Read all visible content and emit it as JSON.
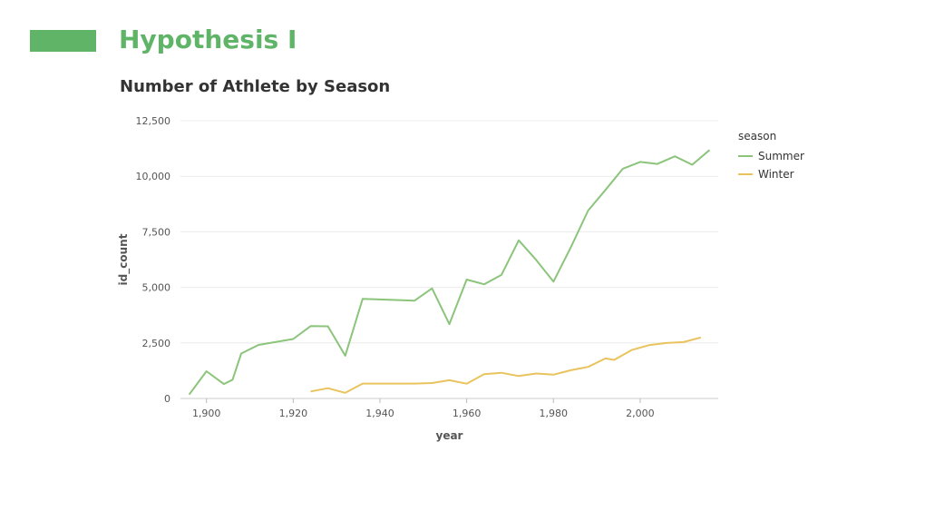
{
  "slide": {
    "title": "Hypothesis I",
    "accent_color": "#5fb468"
  },
  "chart_data": {
    "type": "line",
    "title": "Number of Athlete by Season",
    "xlabel": "year",
    "ylabel": "id_count",
    "xlim": [
      1894,
      2018
    ],
    "ylim": [
      0,
      12500
    ],
    "x_ticks": [
      1900,
      1920,
      1940,
      1960,
      1980,
      2000
    ],
    "x_tick_labels": [
      "1,900",
      "1,920",
      "1,940",
      "1,960",
      "1,980",
      "2,000"
    ],
    "y_ticks": [
      0,
      2500,
      5000,
      7500,
      10000,
      12500
    ],
    "y_tick_labels": [
      "0",
      "2,500",
      "5,000",
      "7,500",
      "10,000",
      "12,500"
    ],
    "grid": true,
    "legend": {
      "title": "season",
      "placement": "right"
    },
    "series": [
      {
        "name": "Summer",
        "color": "#8cc47c",
        "x": [
          1896,
          1900,
          1904,
          1906,
          1908,
          1912,
          1920,
          1924,
          1928,
          1932,
          1936,
          1948,
          1952,
          1956,
          1960,
          1964,
          1968,
          1972,
          1976,
          1980,
          1984,
          1988,
          1992,
          1996,
          2000,
          2004,
          2008,
          2012,
          2016
        ],
        "y": [
          176,
          1224,
          650,
          841,
          2024,
          2409,
          2676,
          3256,
          3247,
          1922,
          4484,
          4402,
          4955,
          3347,
          5352,
          5137,
          5558,
          7114,
          6241,
          5259,
          6797,
          8454,
          9386,
          10339,
          10647,
          10557,
          10899,
          10517,
          11179
        ]
      },
      {
        "name": "Winter",
        "color": "#e8c35e",
        "x": [
          1924,
          1928,
          1932,
          1936,
          1948,
          1952,
          1956,
          1960,
          1964,
          1968,
          1972,
          1976,
          1980,
          1984,
          1988,
          1992,
          1994,
          1998,
          2002,
          2006,
          2010,
          2014
        ],
        "y": [
          313,
          462,
          252,
          668,
          669,
          694,
          821,
          665,
          1094,
          1158,
          1008,
          1123,
          1070,
          1271,
          1423,
          1801,
          1737,
          2176,
          2399,
          2494,
          2536,
          2745
        ]
      }
    ]
  }
}
